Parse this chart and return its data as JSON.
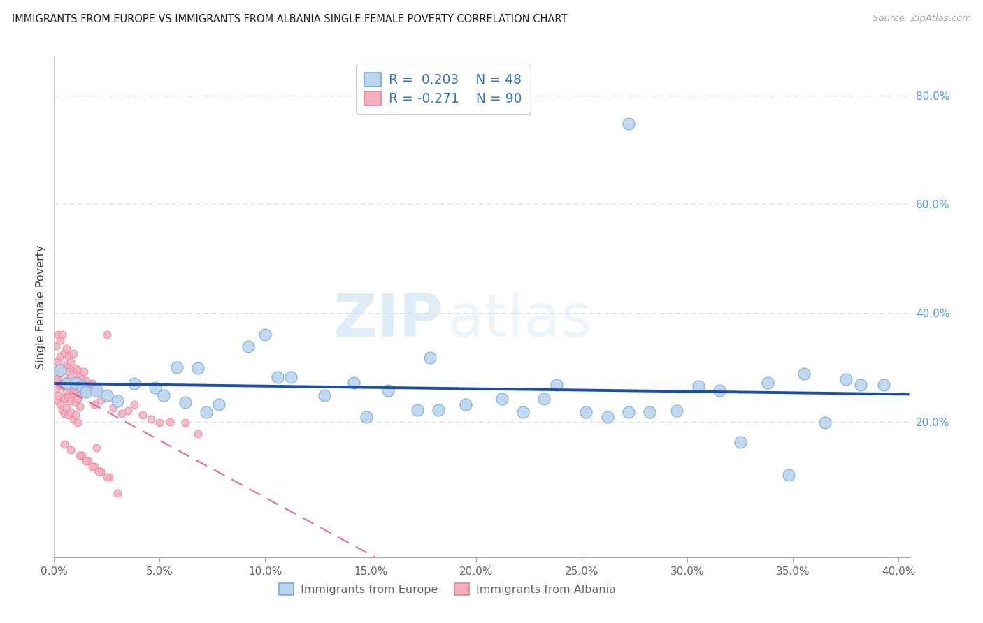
{
  "title": "IMMIGRANTS FROM EUROPE VS IMMIGRANTS FROM ALBANIA SINGLE FEMALE POVERTY CORRELATION CHART",
  "source": "Source: ZipAtlas.com",
  "ylabel": "Single Female Poverty",
  "xlim": [
    0.0,
    0.405
  ],
  "ylim": [
    -0.05,
    0.87
  ],
  "xtick_vals": [
    0.0,
    0.05,
    0.1,
    0.15,
    0.2,
    0.25,
    0.3,
    0.35,
    0.4
  ],
  "xtick_labels": [
    "0.0%",
    "5.0%",
    "10.0%",
    "15.0%",
    "20.0%",
    "25.0%",
    "30.0%",
    "35.0%",
    "40.0%"
  ],
  "ytick_right_vals": [
    0.2,
    0.4,
    0.6,
    0.8
  ],
  "ytick_right_labels": [
    "20.0%",
    "40.0%",
    "60.0%",
    "80.0%"
  ],
  "europe_color": "#b8d4ee",
  "albania_color": "#f5b0c0",
  "europe_edge": "#7aaedb",
  "albania_edge": "#e88098",
  "trend_europe_color": "#1a4db0",
  "trend_albania_color": "#dd4477",
  "R_europe": 0.203,
  "N_europe": 48,
  "R_albania": -0.271,
  "N_albania": 90,
  "watermark_zip": "ZIP",
  "watermark_atlas": "atlas",
  "legend_label_europe": "Immigrants from Europe",
  "legend_label_albania": "Immigrants from Albania",
  "tick_color": "#aaaaaa",
  "right_tick_color": "#5599ee",
  "grid_color": "#dddddd",
  "eu_x": [
    0.003,
    0.006,
    0.01,
    0.013,
    0.015,
    0.02,
    0.025,
    0.03,
    0.038,
    0.048,
    0.058,
    0.068,
    0.078,
    0.092,
    0.1,
    0.112,
    0.128,
    0.142,
    0.158,
    0.172,
    0.182,
    0.195,
    0.212,
    0.222,
    0.238,
    0.252,
    0.262,
    0.272,
    0.282,
    0.295,
    0.305,
    0.315,
    0.325,
    0.338,
    0.348,
    0.355,
    0.365,
    0.375,
    0.382,
    0.393,
    0.272,
    0.178,
    0.148,
    0.106,
    0.052,
    0.062,
    0.072,
    0.232
  ],
  "eu_y": [
    0.295,
    0.27,
    0.272,
    0.265,
    0.255,
    0.258,
    0.248,
    0.238,
    0.27,
    0.262,
    0.3,
    0.298,
    0.232,
    0.338,
    0.36,
    0.282,
    0.248,
    0.272,
    0.258,
    0.222,
    0.222,
    0.232,
    0.242,
    0.218,
    0.268,
    0.218,
    0.208,
    0.218,
    0.218,
    0.22,
    0.265,
    0.258,
    0.162,
    0.272,
    0.102,
    0.288,
    0.198,
    0.278,
    0.268,
    0.268,
    0.748,
    0.318,
    0.208,
    0.282,
    0.248,
    0.235,
    0.218,
    0.242
  ],
  "al_x_dense": [
    0.001,
    0.001,
    0.002,
    0.002,
    0.002,
    0.003,
    0.003,
    0.003,
    0.004,
    0.004,
    0.004,
    0.005,
    0.005,
    0.005,
    0.006,
    0.006,
    0.006,
    0.007,
    0.007,
    0.007,
    0.008,
    0.008,
    0.008,
    0.009,
    0.009,
    0.01,
    0.01,
    0.011,
    0.011,
    0.012,
    0.012,
    0.013,
    0.013,
    0.014,
    0.015,
    0.016,
    0.017,
    0.018,
    0.019,
    0.02,
    0.001,
    0.002,
    0.003,
    0.004,
    0.005,
    0.006,
    0.007,
    0.008,
    0.009,
    0.01,
    0.011,
    0.012,
    0.0,
    0.001,
    0.002,
    0.003,
    0.004,
    0.005,
    0.006,
    0.007,
    0.008,
    0.009,
    0.01,
    0.011
  ],
  "al_y_dense": [
    0.34,
    0.31,
    0.36,
    0.31,
    0.28,
    0.35,
    0.32,
    0.29,
    0.36,
    0.295,
    0.27,
    0.325,
    0.298,
    0.265,
    0.335,
    0.305,
    0.275,
    0.32,
    0.292,
    0.265,
    0.31,
    0.282,
    0.255,
    0.325,
    0.295,
    0.298,
    0.268,
    0.295,
    0.268,
    0.285,
    0.26,
    0.278,
    0.252,
    0.292,
    0.275,
    0.258,
    0.268,
    0.27,
    0.232,
    0.26,
    0.26,
    0.238,
    0.268,
    0.245,
    0.242,
    0.258,
    0.245,
    0.238,
    0.252,
    0.235,
    0.242,
    0.228,
    0.295,
    0.278,
    0.248,
    0.232,
    0.222,
    0.215,
    0.225,
    0.212,
    0.218,
    0.205,
    0.212,
    0.198
  ],
  "al_x_sparse": [
    0.022,
    0.025,
    0.028,
    0.032,
    0.035,
    0.038,
    0.042,
    0.046,
    0.05,
    0.055,
    0.062,
    0.068,
    0.02,
    0.013,
    0.016,
    0.019,
    0.022,
    0.026,
    0.005,
    0.008,
    0.012,
    0.015,
    0.018,
    0.021,
    0.025,
    0.03
  ],
  "al_y_sparse": [
    0.24,
    0.36,
    0.225,
    0.215,
    0.22,
    0.232,
    0.212,
    0.205,
    0.198,
    0.2,
    0.198,
    0.178,
    0.152,
    0.138,
    0.128,
    0.118,
    0.108,
    0.098,
    0.158,
    0.148,
    0.138,
    0.128,
    0.118,
    0.108,
    0.098,
    0.068
  ]
}
